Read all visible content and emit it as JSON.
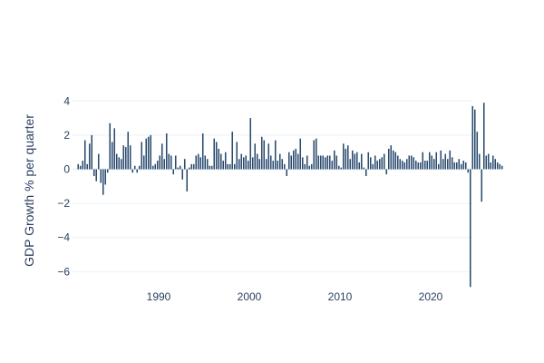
{
  "chart_data": {
    "type": "bar",
    "ylabel": "GDP Growth % per quarter",
    "ylim": [
      -7.1,
      4.6
    ],
    "xlim": [
      1980.5,
      2024.5
    ],
    "yticks": [
      4,
      2,
      0,
      -2,
      -4,
      -6
    ],
    "ytick_labels": [
      "4",
      "2",
      "0",
      "−2",
      "−4",
      "−6"
    ],
    "xticks": [
      1990,
      2000,
      2010,
      2020
    ],
    "xtick_labels": [
      "1990",
      "2000",
      "2010",
      "2020"
    ],
    "grid": true,
    "bar_color": "#2a4a6f",
    "start_quarter": "1981 Q1",
    "values": [
      0.3,
      0.2,
      0.5,
      1.7,
      0.3,
      1.5,
      2.0,
      -0.4,
      -0.7,
      0.9,
      -0.8,
      -1.5,
      -0.9,
      -0.2,
      2.7,
      1.6,
      2.4,
      0.9,
      0.7,
      0.6,
      1.4,
      1.3,
      2.2,
      1.4,
      -0.2,
      0.2,
      -0.2,
      0.2,
      1.6,
      0.8,
      1.8,
      1.9,
      2.0,
      0.2,
      0.3,
      0.5,
      0.8,
      1.5,
      0.6,
      2.1,
      0.9,
      0.8,
      -0.3,
      0.8,
      0.1,
      0.2,
      -0.6,
      0.6,
      -1.3,
      0.1,
      0.3,
      0.3,
      0.8,
      0.9,
      0.7,
      2.1,
      0.8,
      0.6,
      0.2,
      0.2,
      1.8,
      1.6,
      1.2,
      0.9,
      0.5,
      1.0,
      0.3,
      0.3,
      2.2,
      0.3,
      1.6,
      0.6,
      0.9,
      0.7,
      0.8,
      0.5,
      3.0,
      0.7,
      1.5,
      0.9,
      0.6,
      1.9,
      1.7,
      0.6,
      1.5,
      0.8,
      0.5,
      1.7,
      0.5,
      0.9,
      0.6,
      0.3,
      -0.4,
      1.0,
      0.8,
      1.1,
      1.2,
      0.9,
      1.8,
      0.7,
      0.3,
      0.8,
      0.2,
      0.3,
      1.7,
      1.8,
      0.8,
      0.8,
      0.8,
      0.7,
      0.8,
      0.8,
      0.5,
      1.1,
      0.8,
      0.2,
      0.1,
      1.5,
      1.2,
      1.4,
      0.6,
      1.1,
      0.9,
      1.0,
      0.4,
      0.9,
      0.1,
      -0.4,
      1.0,
      0.7,
      0.3,
      0.8,
      0.5,
      0.6,
      0.7,
      0.9,
      -0.3,
      1.2,
      1.4,
      1.1,
      1.0,
      0.8,
      0.6,
      0.5,
      0.4,
      0.6,
      0.8,
      0.8,
      0.7,
      0.5,
      0.4,
      0.4,
      1.0,
      0.5,
      0.5,
      1.0,
      0.8,
      0.6,
      1.0,
      0.3,
      1.1,
      0.6,
      0.9,
      0.6,
      1.1,
      0.7,
      0.4,
      0.4,
      0.6,
      0.3,
      0.5,
      0.4,
      -0.2,
      -6.9,
      3.7,
      3.5,
      2.2,
      0.9,
      -1.9,
      3.9,
      0.8,
      0.9,
      0.4,
      0.8,
      0.6,
      0.4,
      0.3,
      0.2
    ]
  }
}
